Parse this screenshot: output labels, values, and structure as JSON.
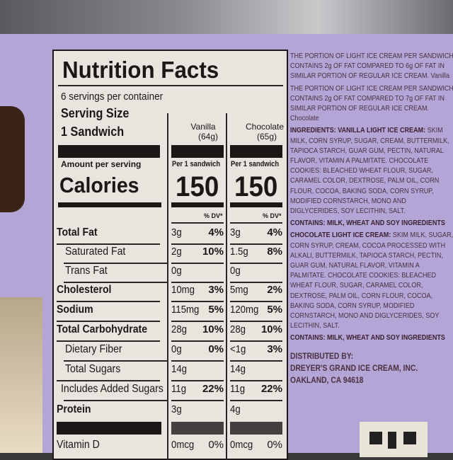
{
  "label": {
    "title": "Nutrition Facts",
    "servings": "6 servings per container",
    "serving_size_label": "Serving Size",
    "serving_size": "1 Sandwich",
    "columns": [
      {
        "name": "Vanilla",
        "weight": "(64g)",
        "per": "Per 1 sandwich",
        "calories": "150",
        "dv": "% DV*"
      },
      {
        "name": "Chocolate",
        "weight": "(65g)",
        "per": "Per 1 sandwich",
        "calories": "150",
        "dv": "% DV*"
      }
    ],
    "amount_per_serving": "Amount per serving",
    "calories_label": "Calories",
    "rows": [
      {
        "name": "Total Fat",
        "bold": true,
        "indent": 0,
        "v": [
          "3g",
          "4%"
        ],
        "c": [
          "3g",
          "4%"
        ]
      },
      {
        "name": "Saturated Fat",
        "bold": false,
        "indent": 1,
        "v": [
          "2g",
          "10%"
        ],
        "c": [
          "1.5g",
          "8%"
        ]
      },
      {
        "name": "Trans Fat",
        "bold": false,
        "indent": 1,
        "v": [
          "0g",
          ""
        ],
        "c": [
          "0g",
          ""
        ]
      },
      {
        "name": "Cholesterol",
        "bold": true,
        "indent": 0,
        "v": [
          "10mg",
          "3%"
        ],
        "c": [
          "5mg",
          "2%"
        ]
      },
      {
        "name": "Sodium",
        "bold": true,
        "indent": 0,
        "v": [
          "115mg",
          "5%"
        ],
        "c": [
          "120mg",
          "5%"
        ]
      },
      {
        "name": "Total Carbohydrate",
        "bold": true,
        "indent": 0,
        "v": [
          "28g",
          "10%"
        ],
        "c": [
          "28g",
          "10%"
        ]
      },
      {
        "name": "Dietary Fiber",
        "bold": false,
        "indent": 1,
        "v": [
          "0g",
          "0%"
        ],
        "c": [
          "<1g",
          "3%"
        ]
      },
      {
        "name": "Total Sugars",
        "bold": false,
        "indent": 1,
        "v": [
          "14g",
          ""
        ],
        "c": [
          "14g",
          ""
        ]
      },
      {
        "name": "Includes Added Sugars",
        "bold": false,
        "indent": 2,
        "v": [
          "11g",
          "22%"
        ],
        "c": [
          "11g",
          "22%"
        ]
      },
      {
        "name": "Protein",
        "bold": true,
        "indent": 0,
        "v": [
          "3g",
          ""
        ],
        "c": [
          "4g",
          ""
        ]
      },
      {
        "name": "Vitamin D",
        "bold": false,
        "indent": 0,
        "v": [
          "0mcg",
          "0%"
        ],
        "c": [
          "0mcg",
          "0%"
        ]
      }
    ]
  },
  "side_text": [
    {
      "bold": "",
      "text": "THE PORTION OF LIGHT ICE CREAM PER SANDWICH CONTAINS 2g OF FAT COMPARED TO 6g OF FAT IN SIMILAR PORTION OF REGULAR ICE CREAM. Vanilla"
    },
    {
      "bold": "",
      "text": "THE PORTION OF LIGHT ICE CREAM PER SANDWICH CONTAINS 2g OF FAT COMPARED TO 7g OF FAT IN SIMILAR PORTION OF REGULAR ICE CREAM. Chocolate"
    },
    {
      "bold": "INGREDIENTS: VANILLA LIGHT ICE CREAM:",
      "text": " SKIM MILK, CORN SYRUP, SUGAR, CREAM, BUTTERMILK, TAPIOCA STARCH, GUAR GUM, PECTIN, NATURAL FLAVOR, VITAMIN A PALMITATE. CHOCOLATE COOKIES: BLEACHED WHEAT FLOUR, SUGAR, CARAMEL COLOR, DEXTROSE, PALM OIL, CORN FLOUR, COCOA, BAKING SODA, CORN SYRUP, MODIFIED CORNSTARCH, MONO AND DIGLYCERIDES, SOY LECITHIN, SALT."
    },
    {
      "bold": "CONTAINS: MILK, WHEAT AND SOY INGREDIENTS",
      "text": ""
    },
    {
      "bold": "CHOCOLATE LIGHT ICE CREAM:",
      "text": " SKIM MILK, SUGAR, CORN SYRUP, CREAM, COCOA PROCESSED WITH ALKALI, BUTTERMILK, TAPIOCA STARCH, PECTIN, GUAR GUM, NATURAL FLAVOR, VITAMIN A PALMITATE. CHOCOLATE COOKIES: BLEACHED WHEAT FLOUR, SUGAR, CARAMEL COLOR, DEXTROSE, PALM OIL, CORN FLOUR, COCOA, BAKING SODA, CORN SYRUP, MODIFIED CORNSTARCH, MONO AND DIGLYCERIDES, SOY LECITHIN, SALT."
    },
    {
      "bold": "CONTAINS: MILK, WHEAT AND SOY INGREDIENTS",
      "text": ""
    }
  ],
  "distributor": [
    "DISTRIBUTED BY:",
    "DREYER'S GRAND ICE CREAM, INC.",
    "OAKLAND, CA 94618"
  ]
}
